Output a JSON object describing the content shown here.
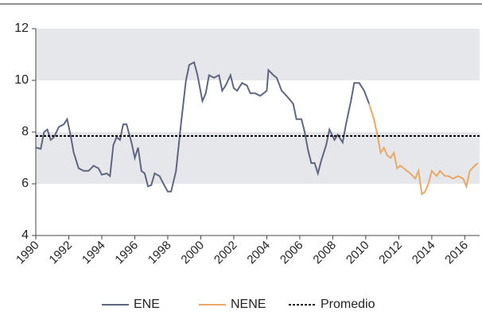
{
  "chart_data": {
    "type": "line",
    "series": [
      {
        "name": "ENE",
        "color": "#5f6680",
        "x": [
          1990.0,
          1990.3,
          1990.5,
          1990.7,
          1990.9,
          1991.1,
          1991.4,
          1991.7,
          1991.9,
          1992.1,
          1992.3,
          1992.6,
          1992.9,
          1993.2,
          1993.5,
          1993.8,
          1994.0,
          1994.3,
          1994.5,
          1994.7,
          1994.9,
          1995.1,
          1995.3,
          1995.5,
          1995.8,
          1996.0,
          1996.2,
          1996.4,
          1996.6,
          1996.8,
          1997.0,
          1997.2,
          1997.5,
          1997.7,
          1998.0,
          1998.2,
          1998.5,
          1998.8,
          1999.1,
          1999.3,
          1999.6,
          1999.8,
          2000.1,
          2000.3,
          2000.5,
          2000.8,
          2001.1,
          2001.3,
          2001.5,
          2001.8,
          2002.0,
          2002.2,
          2002.5,
          2002.8,
          2003.0,
          2003.3,
          2003.6,
          2003.8,
          2004.0,
          2004.1,
          2004.4,
          2004.6,
          2004.9,
          2005.2,
          2005.6,
          2005.8,
          2006.1,
          2006.3,
          2006.5,
          2006.7,
          2006.9,
          2007.1,
          2007.3,
          2007.6,
          2007.8,
          2008.1,
          2008.3,
          2008.6,
          2008.8,
          2009.1,
          2009.3,
          2009.6,
          2009.9,
          2010.2
        ],
        "values": [
          7.4,
          7.35,
          8.0,
          8.1,
          7.7,
          7.8,
          8.2,
          8.3,
          8.5,
          7.9,
          7.2,
          6.6,
          6.5,
          6.5,
          6.7,
          6.6,
          6.35,
          6.4,
          6.3,
          7.5,
          7.8,
          7.7,
          8.3,
          8.3,
          7.6,
          7.0,
          7.4,
          6.5,
          6.4,
          5.9,
          5.95,
          6.4,
          6.3,
          6.05,
          5.7,
          5.7,
          6.5,
          8.3,
          10.0,
          10.6,
          10.7,
          10.2,
          9.2,
          9.5,
          10.2,
          10.1,
          10.2,
          9.6,
          9.8,
          10.2,
          9.7,
          9.6,
          9.9,
          9.8,
          9.5,
          9.5,
          9.4,
          9.5,
          9.6,
          10.4,
          10.2,
          10.1,
          9.6,
          9.4,
          9.1,
          8.5,
          8.5,
          8.0,
          7.3,
          6.8,
          6.8,
          6.4,
          6.9,
          7.5,
          8.1,
          7.7,
          7.9,
          7.6,
          8.3,
          9.2,
          9.9,
          9.9,
          9.6,
          9.1
        ]
      },
      {
        "name": "NENE",
        "color": "#e8a868",
        "x": [
          2010.2,
          2010.5,
          2010.7,
          2010.9,
          2011.1,
          2011.3,
          2011.5,
          2011.7,
          2011.9,
          2012.1,
          2012.3,
          2012.5,
          2012.7,
          2013.0,
          2013.2,
          2013.4,
          2013.6,
          2013.8,
          2014.0,
          2014.3,
          2014.5,
          2014.8,
          2015.0,
          2015.3,
          2015.6,
          2015.9,
          2016.1,
          2016.3,
          2016.6,
          2016.8
        ],
        "values": [
          9.1,
          8.5,
          7.9,
          7.2,
          7.4,
          7.1,
          7.0,
          7.2,
          6.6,
          6.7,
          6.6,
          6.5,
          6.4,
          6.2,
          6.5,
          5.6,
          5.7,
          6.0,
          6.5,
          6.3,
          6.5,
          6.3,
          6.3,
          6.2,
          6.3,
          6.2,
          5.9,
          6.5,
          6.7,
          6.8
        ]
      }
    ],
    "reference_line": {
      "name": "Promedio",
      "value": 7.85,
      "color": "#000000"
    },
    "bands": [
      [
        6,
        8
      ],
      [
        10,
        12
      ]
    ],
    "xlim": [
      1990,
      2016.9
    ],
    "xticks": [
      1990,
      1992,
      1994,
      1996,
      1998,
      2000,
      2002,
      2004,
      2006,
      2008,
      2010,
      2012,
      2014,
      2016
    ],
    "ylim": [
      4,
      12
    ],
    "yticks": [
      4,
      6,
      8,
      10,
      12
    ]
  }
}
